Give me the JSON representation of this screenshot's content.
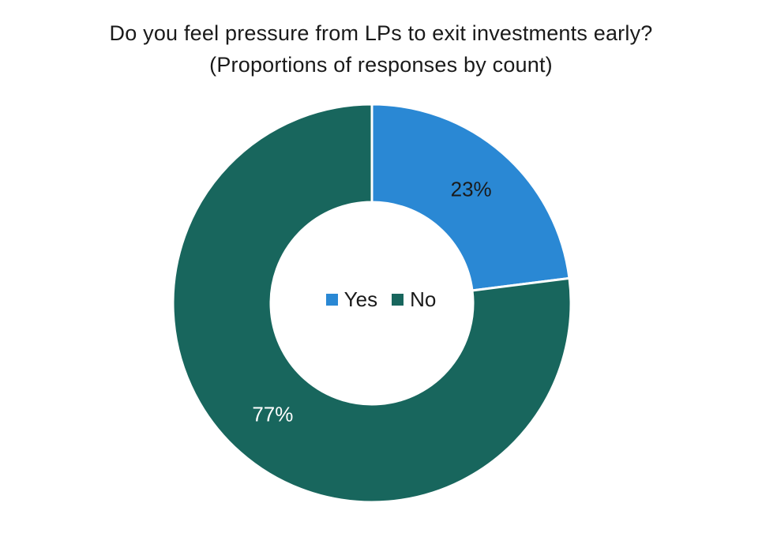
{
  "chart_data": {
    "type": "pie",
    "title": "Do you feel pressure from LPs to exit investments early?",
    "subtitle": "(Proportions of responses by count)",
    "donut": true,
    "categories": [
      "Yes",
      "No"
    ],
    "values": [
      23,
      77
    ],
    "data_labels": [
      "23%",
      "77%"
    ],
    "colors": [
      "#2a88d4",
      "#18665d"
    ],
    "label_colors": [
      "#1a1a1a",
      "#ffffff"
    ],
    "legend_position": "center"
  }
}
